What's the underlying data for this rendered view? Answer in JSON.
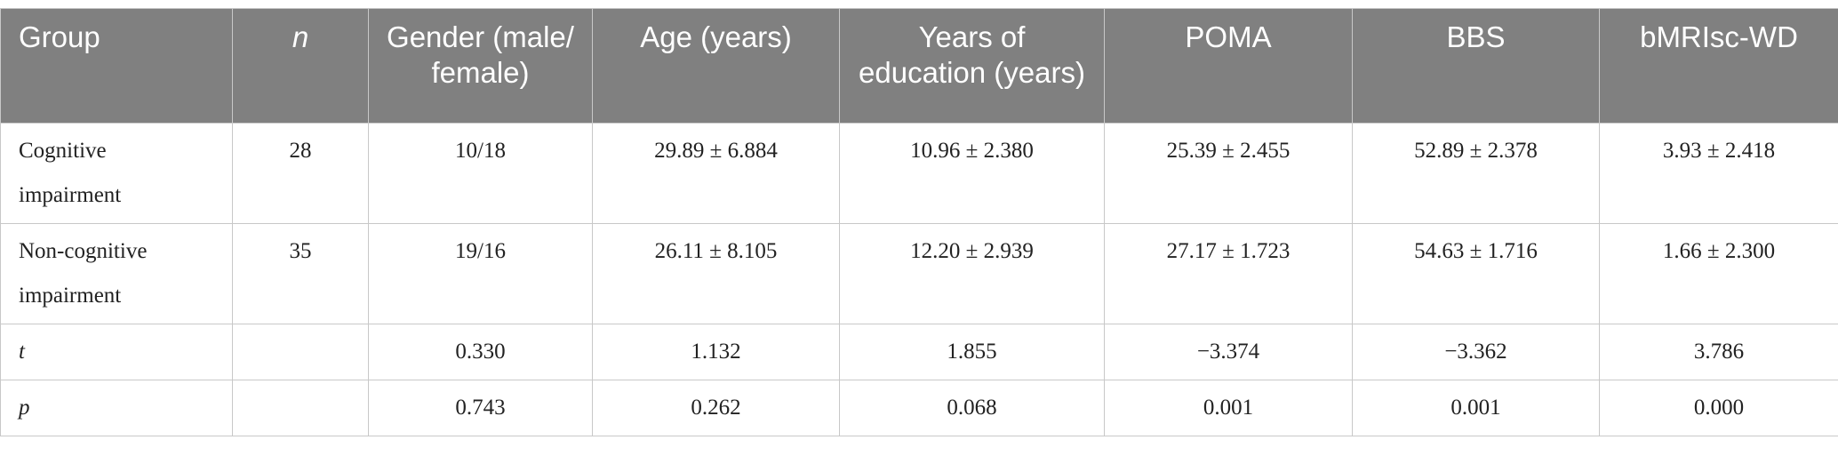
{
  "table": {
    "header": [
      "Group",
      "n",
      "Gender (male/ female)",
      "Age (years)",
      "Years of education (years)",
      "POMA",
      "BBS",
      "bMRIsc-WD"
    ],
    "rows": [
      [
        "Cognitive impairment",
        "28",
        "10/18",
        "29.89 ± 6.884",
        "10.96 ± 2.380",
        "25.39 ± 2.455",
        "52.89 ± 2.378",
        "3.93 ± 2.418"
      ],
      [
        "Non-cognitive impairment",
        "35",
        "19/16",
        "26.11 ± 8.105",
        "12.20 ± 2.939",
        "27.17 ± 1.723",
        "54.63 ± 1.716",
        "1.66 ± 2.300"
      ],
      [
        "t",
        null,
        "0.330",
        "1.132",
        "1.855",
        "−3.374",
        "−3.362",
        "3.786"
      ],
      [
        "p",
        null,
        "0.743",
        "0.262",
        "0.068",
        "0.001",
        "0.001",
        "0.000"
      ]
    ]
  }
}
